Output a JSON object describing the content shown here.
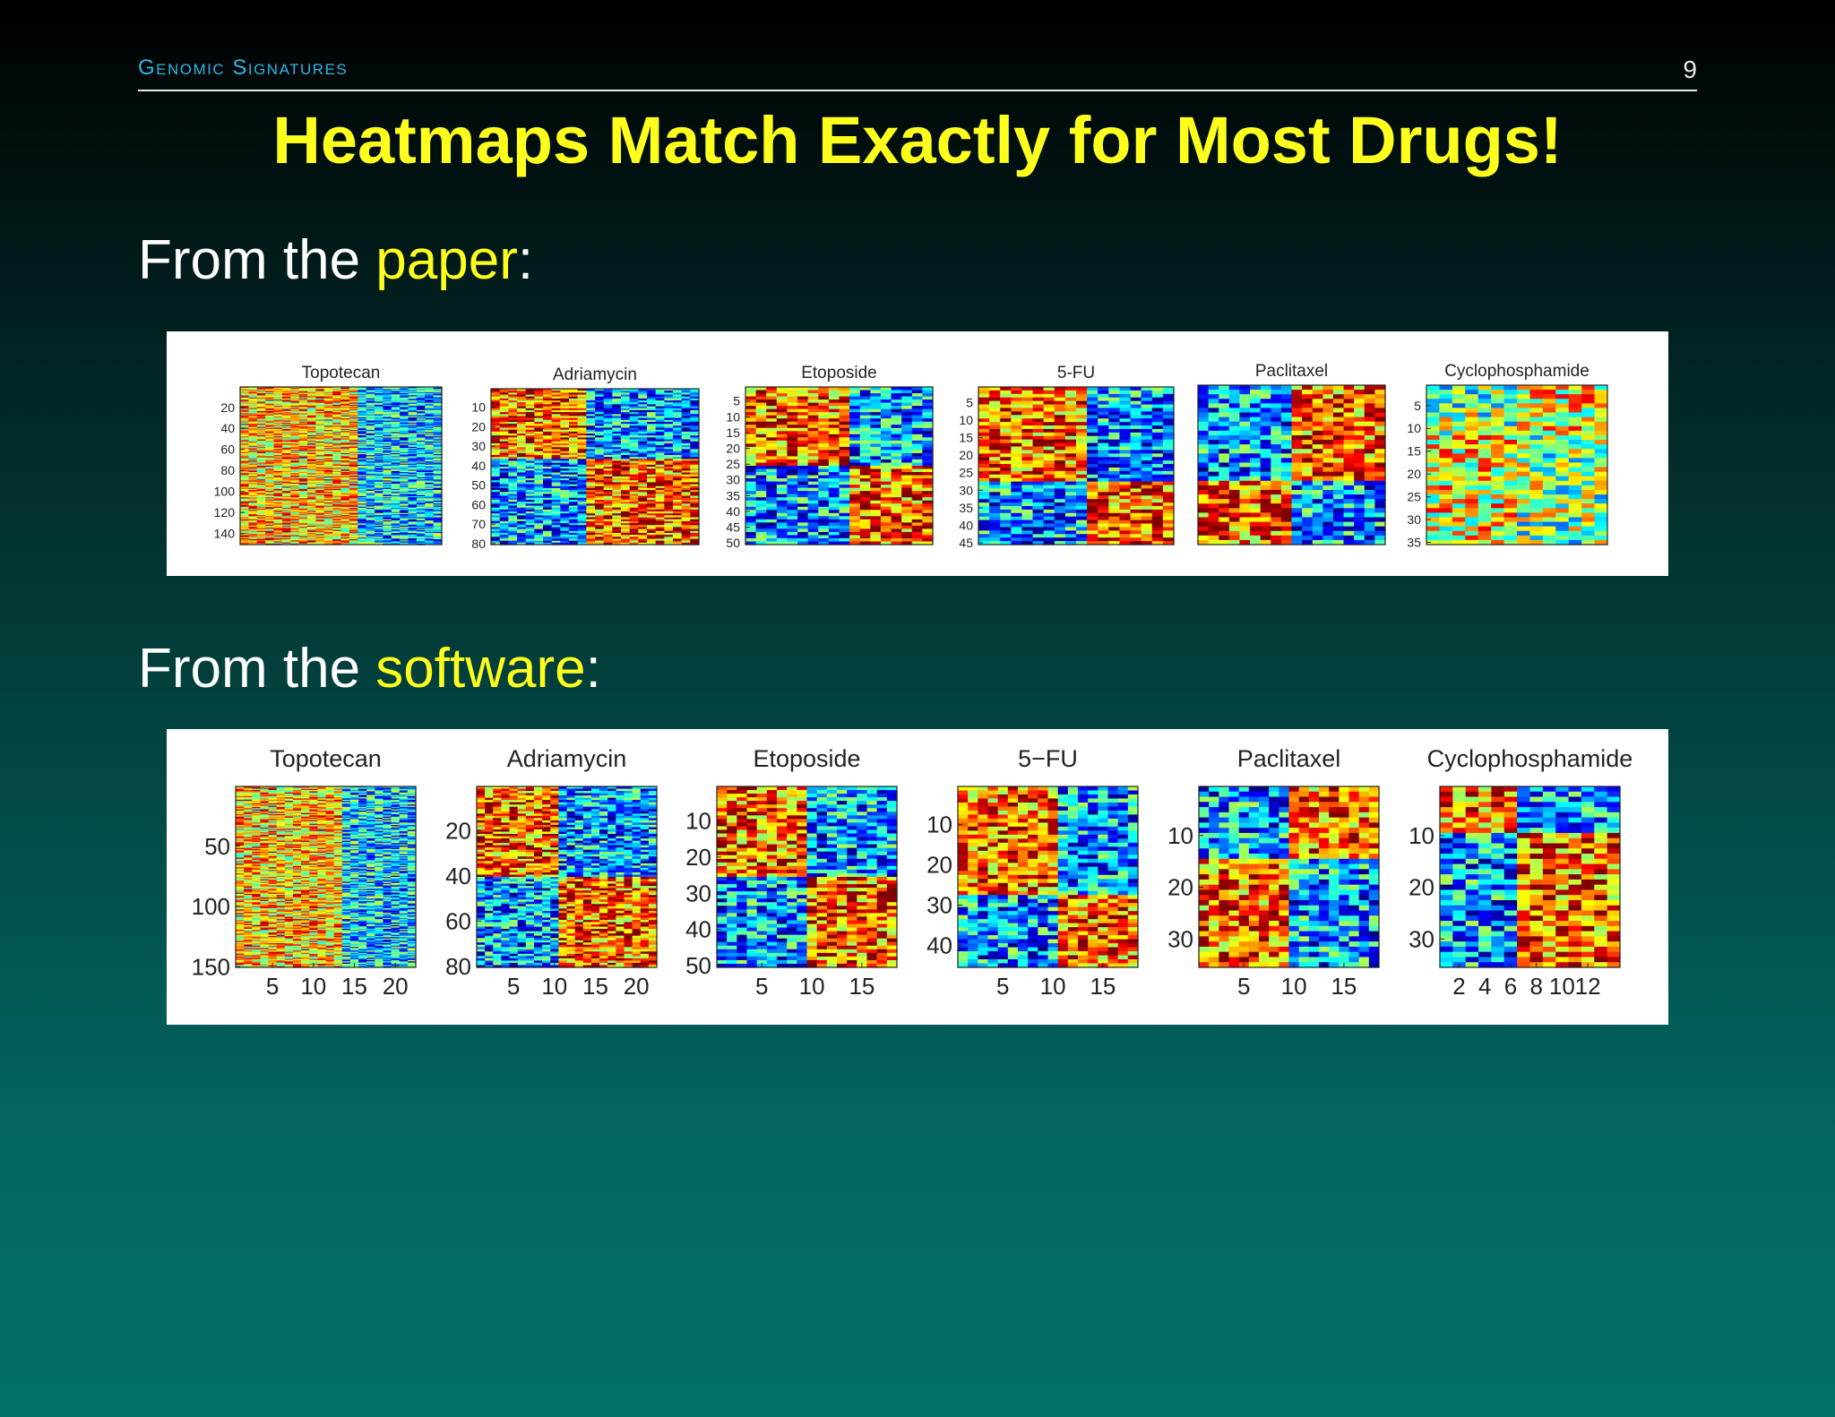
{
  "header": {
    "section_title": "Genomic Signatures",
    "page_number": "9"
  },
  "title": "Heatmaps Match Exactly for Most Drugs!",
  "lines": {
    "paper": {
      "prefix": "From the ",
      "highlight": "paper",
      "suffix": ":"
    },
    "software": {
      "prefix": "From the ",
      "highlight": "software",
      "suffix": ":"
    }
  },
  "colors": {
    "title": "#ffff1e",
    "section": "#2bb8e8",
    "text": "#ffffff",
    "panel_background": "#ffffff"
  },
  "chart_data": [
    {
      "panel": "paper",
      "type": "heatmap",
      "heatmaps": [
        {
          "title": "Topotecan",
          "rows": 150,
          "cols": 24,
          "yticks": [
            20,
            40,
            60,
            80,
            100,
            120,
            140
          ],
          "xticks": [],
          "split_col": 0.55,
          "split_row": null,
          "pattern": "cols"
        },
        {
          "title": "Adriamycin",
          "rows": 80,
          "cols": 24,
          "yticks": [
            10,
            20,
            30,
            40,
            50,
            60,
            70,
            80
          ],
          "xticks": [],
          "split_col": 0.45,
          "split_row": 0.45,
          "pattern": "quad_hot_tl"
        },
        {
          "title": "Etoposide",
          "rows": 50,
          "cols": 18,
          "yticks": [
            5,
            10,
            15,
            20,
            25,
            30,
            35,
            40,
            45,
            50
          ],
          "xticks": [],
          "split_col": 0.55,
          "split_row": 0.5,
          "pattern": "quad_hot_tl"
        },
        {
          "title": "5-FU",
          "rows": 45,
          "cols": 18,
          "yticks": [
            5,
            10,
            15,
            20,
            25,
            30,
            35,
            40,
            45
          ],
          "xticks": [],
          "split_col": 0.52,
          "split_row": 0.6,
          "pattern": "quad_hot_tl"
        },
        {
          "title": "Paclitaxel",
          "rows": 35,
          "cols": 18,
          "yticks": [],
          "xticks": [],
          "split_col": 0.5,
          "split_row": 0.6,
          "pattern": "quad_cold_tl"
        },
        {
          "title": "Cyclophosphamide",
          "rows": 35,
          "cols": 14,
          "yticks": [
            5,
            10,
            15,
            20,
            25,
            30,
            35
          ],
          "xticks": [],
          "split_col": 0.45,
          "split_row": 0.3,
          "pattern": "quad_mixed"
        }
      ]
    },
    {
      "panel": "software",
      "type": "heatmap",
      "heatmaps": [
        {
          "title": "Topotecan",
          "rows": 150,
          "cols": 22,
          "yticks": [
            50,
            100,
            150
          ],
          "xticks": [
            5,
            10,
            15,
            20
          ],
          "split_col": 0.57,
          "split_row": null,
          "pattern": "cols"
        },
        {
          "title": "Adriamycin",
          "rows": 80,
          "cols": 22,
          "yticks": [
            20,
            40,
            60,
            80
          ],
          "xticks": [
            5,
            10,
            15,
            20
          ],
          "split_col": 0.45,
          "split_row": 0.5,
          "pattern": "quad_hot_tl"
        },
        {
          "title": "Etoposide",
          "rows": 50,
          "cols": 18,
          "yticks": [
            10,
            20,
            30,
            40,
            50
          ],
          "xticks": [
            5,
            10,
            15
          ],
          "split_col": 0.5,
          "split_row": 0.5,
          "pattern": "quad_hot_tl"
        },
        {
          "title": "5−FU",
          "rows": 45,
          "cols": 18,
          "yticks": [
            10,
            20,
            30,
            40
          ],
          "xticks": [
            5,
            10,
            15
          ],
          "split_col": 0.52,
          "split_row": 0.6,
          "pattern": "quad_hot_tl"
        },
        {
          "title": "Paclitaxel",
          "rows": 35,
          "cols": 18,
          "yticks": [
            10,
            20,
            30
          ],
          "xticks": [
            5,
            10,
            15
          ],
          "split_col": 0.5,
          "split_row": 0.4,
          "pattern": "quad_cold_tl"
        },
        {
          "title": "Cyclophosphamide",
          "rows": 35,
          "cols": 14,
          "yticks": [
            10,
            20,
            30
          ],
          "xticks": [
            2,
            4,
            6,
            8,
            10,
            12
          ],
          "split_col": 0.42,
          "split_row": 0.25,
          "pattern": "quad_hot_tl"
        }
      ]
    }
  ]
}
